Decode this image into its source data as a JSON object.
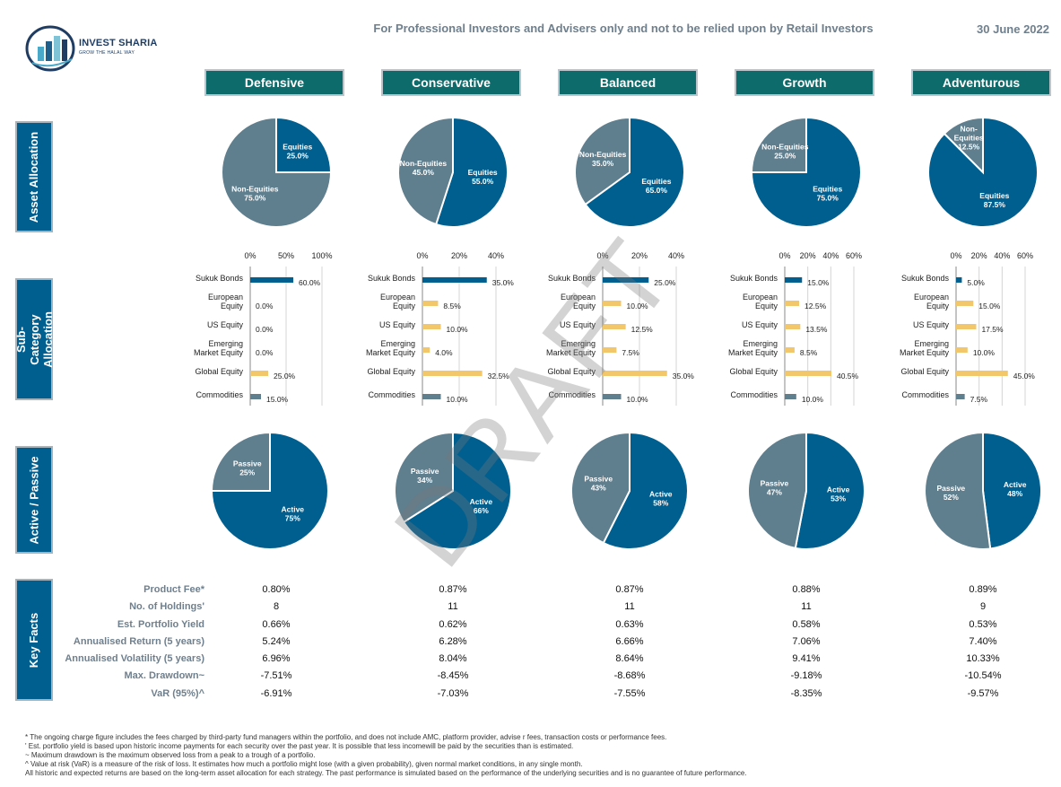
{
  "header": {
    "brand": "INVEST SHARIA",
    "tagline": "GROW THE HALAL WAY",
    "note": "For Professional Investors and Advisers only and not to be relied upon by Retail Investors",
    "date": "30 June 2022"
  },
  "colors": {
    "teal": "#0e6b6b",
    "blue": "#005f8f",
    "grey": "#5f7e8e",
    "yellow": "#f2c66a",
    "label": "#6e7f8d"
  },
  "sections": {
    "asset_allocation": "Asset Allocation",
    "sub_category": "Sub-Category Allocation",
    "active_passive": "Active / Passive",
    "key_facts": "Key Facts"
  },
  "strategies": [
    "Defensive",
    "Conservative",
    "Balanced",
    "Growth",
    "Adventurous"
  ],
  "watermark": "DRAFT",
  "chart_data": [
    {
      "type": "pie",
      "title": "Asset Allocation",
      "series": [
        {
          "name": "Defensive",
          "slices": [
            {
              "label": "Equities",
              "value": 25.0,
              "display": "25.0%"
            },
            {
              "label": "Non-Equities",
              "value": 75.0,
              "display": "75.0%"
            }
          ]
        },
        {
          "name": "Conservative",
          "slices": [
            {
              "label": "Equities",
              "value": 55.0,
              "display": "55.0%"
            },
            {
              "label": "Non-Equities",
              "value": 45.0,
              "display": "45.0%"
            }
          ]
        },
        {
          "name": "Balanced",
          "slices": [
            {
              "label": "Equities",
              "value": 65.0,
              "display": "65.0%"
            },
            {
              "label": "Non-Equities",
              "value": 35.0,
              "display": "35.0%"
            }
          ]
        },
        {
          "name": "Growth",
          "slices": [
            {
              "label": "Equities",
              "value": 75.0,
              "display": "75.0%"
            },
            {
              "label": "Non-Equities",
              "value": 25.0,
              "display": "25.0%"
            }
          ]
        },
        {
          "name": "Adventurous",
          "slices": [
            {
              "label": "Equities",
              "value": 87.5,
              "display": "87.5%"
            },
            {
              "label": "Non-Equities",
              "value": 12.5,
              "display": "12.5%"
            }
          ]
        }
      ]
    },
    {
      "type": "bar",
      "title": "Sub-Category Allocation",
      "orientation": "horizontal",
      "categories": [
        "Sukuk Bonds",
        "European Equity",
        "US Equity",
        "Emerging Market Equity",
        "Global Equity",
        "Commodities"
      ],
      "series": [
        {
          "name": "Defensive",
          "xlim": [
            0,
            100
          ],
          "ticks": [
            "0%",
            "50%",
            "100%"
          ],
          "tick_values": [
            0,
            50,
            100
          ],
          "values": [
            60.0,
            0.0,
            0.0,
            0.0,
            25.0,
            15.0
          ],
          "labels": [
            "60.0%",
            "0.0%",
            "0.0%",
            "0.0%",
            "25.0%",
            "15.0%"
          ]
        },
        {
          "name": "Conservative",
          "xlim": [
            0,
            40
          ],
          "ticks": [
            "0%",
            "20%",
            "40%"
          ],
          "tick_values": [
            0,
            20,
            40
          ],
          "values": [
            35.0,
            8.5,
            10.0,
            4.0,
            32.5,
            10.0
          ],
          "labels": [
            "35.0%",
            "8.5%",
            "10.0%",
            "4.0%",
            "32.5%",
            "10.0%"
          ]
        },
        {
          "name": "Balanced",
          "xlim": [
            0,
            40
          ],
          "ticks": [
            "0%",
            "20%",
            "40%"
          ],
          "tick_values": [
            0,
            20,
            40
          ],
          "values": [
            25.0,
            10.0,
            12.5,
            7.5,
            35.0,
            10.0
          ],
          "labels": [
            "25.0%",
            "10.0%",
            "12.5%",
            "7.5%",
            "35.0%",
            "10.0%"
          ]
        },
        {
          "name": "Growth",
          "xlim": [
            0,
            60
          ],
          "ticks": [
            "0%",
            "20%",
            "40%",
            "60%"
          ],
          "tick_values": [
            0,
            20,
            40,
            60
          ],
          "values": [
            15.0,
            12.5,
            13.5,
            8.5,
            40.5,
            10.0
          ],
          "labels": [
            "15.0%",
            "12.5%",
            "13.5%",
            "8.5%",
            "40.5%",
            "10.0%"
          ]
        },
        {
          "name": "Adventurous",
          "xlim": [
            0,
            60
          ],
          "ticks": [
            "0%",
            "20%",
            "40%",
            "60%"
          ],
          "tick_values": [
            0,
            20,
            40,
            60
          ],
          "values": [
            5.0,
            15.0,
            17.5,
            10.0,
            45.0,
            7.5
          ],
          "labels": [
            "5.0%",
            "15.0%",
            "17.5%",
            "10.0%",
            "45.0%",
            "7.5%"
          ]
        }
      ]
    },
    {
      "type": "pie",
      "title": "Active / Passive",
      "series": [
        {
          "name": "Defensive",
          "slices": [
            {
              "label": "Active",
              "value": 75,
              "display": "75%"
            },
            {
              "label": "Passive",
              "value": 25,
              "display": "25%"
            }
          ]
        },
        {
          "name": "Conservative",
          "slices": [
            {
              "label": "Active",
              "value": 66,
              "display": "66%"
            },
            {
              "label": "Passive",
              "value": 34,
              "display": "34%"
            }
          ]
        },
        {
          "name": "Balanced",
          "slices": [
            {
              "label": "Active",
              "value": 58,
              "display": "58%"
            },
            {
              "label": "Passive",
              "value": 43,
              "display": "43%"
            }
          ]
        },
        {
          "name": "Growth",
          "slices": [
            {
              "label": "Active",
              "value": 53,
              "display": "53%"
            },
            {
              "label": "Passive",
              "value": 47,
              "display": "47%"
            }
          ]
        },
        {
          "name": "Adventurous",
          "slices": [
            {
              "label": "Active",
              "value": 48,
              "display": "48%"
            },
            {
              "label": "Passive",
              "value": 52,
              "display": "52%"
            }
          ]
        }
      ]
    },
    {
      "type": "table",
      "title": "Key Facts",
      "rows": [
        "Product Fee*",
        "No. of Holdings'",
        "Est. Portfolio Yield",
        "Annualised Return (5 years)",
        "Annualised Volatility (5 years)",
        "Max. Drawdown~",
        "VaR (95%)^"
      ],
      "columns": [
        [
          "0.80%",
          "8",
          "0.66%",
          "5.24%",
          "6.96%",
          "-7.51%",
          "-6.91%"
        ],
        [
          "0.87%",
          "11",
          "0.62%",
          "6.28%",
          "8.04%",
          "-8.45%",
          "-7.03%"
        ],
        [
          "0.87%",
          "11",
          "0.63%",
          "6.66%",
          "8.64%",
          "-8.68%",
          "-7.55%"
        ],
        [
          "0.88%",
          "11",
          "0.58%",
          "7.06%",
          "9.41%",
          "-9.18%",
          "-8.35%"
        ],
        [
          "0.89%",
          "9",
          "0.53%",
          "7.40%",
          "10.33%",
          "-10.54%",
          "-9.57%"
        ]
      ]
    }
  ],
  "footnotes": [
    "* The ongoing charge figure includes the fees charged by third-party fund managers within the portfolio, and does not include AMC, platform provider, advise r fees, transaction costs or performance fees.",
    "' Est. portfolio yield is based upon historic income payments for each security over the past year. It is possible that less incomewill be paid by the securities than is estimated.",
    "~ Maximum drawdown is the maximum observed loss from a peak to a trough of a portfolio.",
    "^ Value at risk (VaR) is a measure of the risk of loss. It estimates how much a portfolio might lose (with a given probability), given normal market conditions, in any single month.",
    "All historic and expected returns are based on the long-term asset allocation for each strategy. The past performance is simulated based on the performance of the underlying securities and is no guarantee of future performance."
  ]
}
